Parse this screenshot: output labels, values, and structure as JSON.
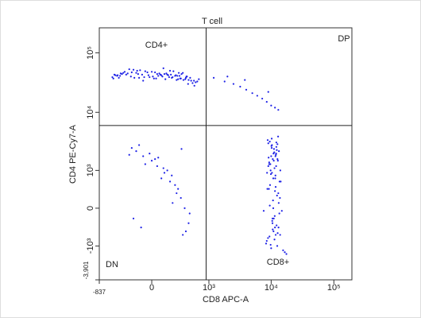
{
  "chart_data": {
    "type": "scatter",
    "title": "T cell",
    "xlabel": "CD8 APC-A",
    "ylabel": "CD4 PE-Cy7-A",
    "xscale": "asinh",
    "yscale": "asinh",
    "xlim": [
      -837,
      194000
    ],
    "ylim": [
      -3901,
      263000
    ],
    "xticks": [
      -837,
      0,
      {
        "value": 1000,
        "label": "10³"
      },
      {
        "value": 10000,
        "label": "10⁴"
      },
      {
        "value": 100000,
        "label": "10⁵"
      }
    ],
    "yticks": [
      {
        "value": -3901,
        "label": "-3,901"
      },
      {
        "value": -1000,
        "label": "-10³"
      },
      0,
      {
        "value": 1000,
        "label": "10³"
      },
      {
        "value": 10000,
        "label": "10⁴"
      },
      {
        "value": 100000,
        "label": "10⁵"
      }
    ],
    "gates": {
      "x": 900,
      "y": 6000
    },
    "quadrant_labels": [
      "CD4+",
      "DP",
      "DN",
      "CD8+"
    ],
    "color": "#1e22e6",
    "x": [
      -410,
      -250,
      -120,
      30,
      150,
      280,
      420,
      560,
      -330,
      -60,
      90,
      210,
      350,
      -480,
      -180,
      10,
      120,
      260,
      480,
      640,
      -290,
      -90,
      60,
      180,
      310,
      -400,
      -150,
      -20,
      110,
      240,
      390,
      530,
      -350,
      -210,
      -40,
      80,
      200,
      330,
      450,
      -500,
      -270,
      -110,
      40,
      160,
      290,
      410,
      600,
      -380,
      -130,
      0,
      130,
      270,
      -440,
      -230,
      -70,
      70,
      190,
      320,
      500,
      680,
      -310,
      -170,
      -30,
      100,
      220,
      360,
      -460,
      -200,
      -80,
      50,
      170,
      300,
      440,
      -360,
      -140,
      20,
      140,
      250,
      400,
      570,
      9500,
      11200,
      12800,
      10300,
      8700,
      13500,
      11800,
      10000,
      12100,
      9000,
      14200,
      10800,
      11500,
      8300,
      12600,
      10600,
      9800,
      13000,
      11000,
      15500,
      10200,
      12300,
      9300,
      11700,
      13800,
      10500,
      8900,
      12000,
      11300,
      9600,
      14800,
      10900,
      12500,
      10100,
      9100,
      11600,
      13200,
      10400,
      8500,
      12900,
      11100,
      9700,
      13600,
      10700,
      12200,
      9400,
      11900,
      10300,
      14000,
      9200,
      11400,
      12700,
      10000,
      8800,
      13300,
      11000,
      9900,
      12400,
      10600,
      16500,
      9000,
      11700,
      12000,
      10800,
      9500,
      13100,
      11300,
      10200,
      12600,
      8600,
      11500,
      10500,
      13900,
      9800,
      12100,
      10900,
      9300,
      11800,
      7600,
      17500,
      -200,
      -80,
      50,
      180,
      320,
      450,
      -150,
      0,
      120,
      260,
      400,
      -230,
      -60,
      90,
      210,
      350,
      -120,
      30,
      150,
      280,
      -180,
      -20,
      110,
      240,
      380,
      -100,
      60,
      200,
      330,
      470,
      1200,
      1800,
      2500,
      3200,
      4000,
      5000,
      6000,
      7200,
      8500,
      10000,
      11500,
      13000,
      2000,
      3800,
      9000
    ],
    "y": [
      41000,
      45000,
      38000,
      47000,
      43000,
      36000,
      40000,
      34000,
      44000,
      49000,
      42000,
      39000,
      46000,
      37000,
      52000,
      40000,
      44000,
      35000,
      38000,
      33000,
      48000,
      43000,
      41000,
      50000,
      37000,
      42000,
      46000,
      39000,
      55000,
      41000,
      36000,
      31000,
      45000,
      40000,
      47000,
      43000,
      38000,
      44000,
      35000,
      39000,
      43000,
      51000,
      37000,
      42000,
      46000,
      40000,
      32000,
      38000,
      44000,
      48000,
      36000,
      41000,
      42000,
      53000,
      39000,
      45000,
      43000,
      37000,
      34000,
      36000,
      46000,
      38000,
      42000,
      40000,
      49000,
      35000,
      43000,
      47000,
      34000,
      44000,
      39000,
      41000,
      30000,
      41000,
      50000,
      37000,
      45000,
      42000,
      38000,
      28000,
      3200,
      2100,
      1500,
      900,
      400,
      -100,
      -600,
      1800,
      2600,
      1200,
      600,
      0,
      -400,
      -900,
      2900,
      1600,
      1000,
      300,
      -200,
      -1200,
      3600,
      2300,
      1400,
      800,
      200,
      -300,
      -700,
      2000,
      1100,
      500,
      -50,
      -500,
      -1000,
      2700,
      1700,
      700,
      100,
      -250,
      -800,
      3900,
      2400,
      1300,
      600,
      150,
      -350,
      -650,
      1900,
      2800,
      1000,
      400,
      -150,
      -550,
      -1100,
      3400,
      2200,
      1500,
      850,
      250,
      -450,
      -1300,
      3000,
      1800,
      1200,
      700,
      50,
      -400,
      -750,
      2500,
      1600,
      900,
      350,
      -200,
      -600,
      -950,
      3100,
      2000,
      1300,
      450,
      -50,
      -1400,
      2500,
      1800,
      1200,
      600,
      200,
      -300,
      2200,
      1500,
      900,
      300,
      -500,
      1900,
      1300,
      700,
      100,
      -600,
      2800,
      1600,
      1000,
      400,
      -200,
      2000,
      1100,
      500,
      0,
      -400,
      1700,
      800,
      2400,
      -100,
      38000,
      33000,
      30000,
      27000,
      24000,
      21000,
      19000,
      17000,
      15000,
      13000,
      12000,
      11000,
      40000,
      35000,
      22000
    ]
  }
}
